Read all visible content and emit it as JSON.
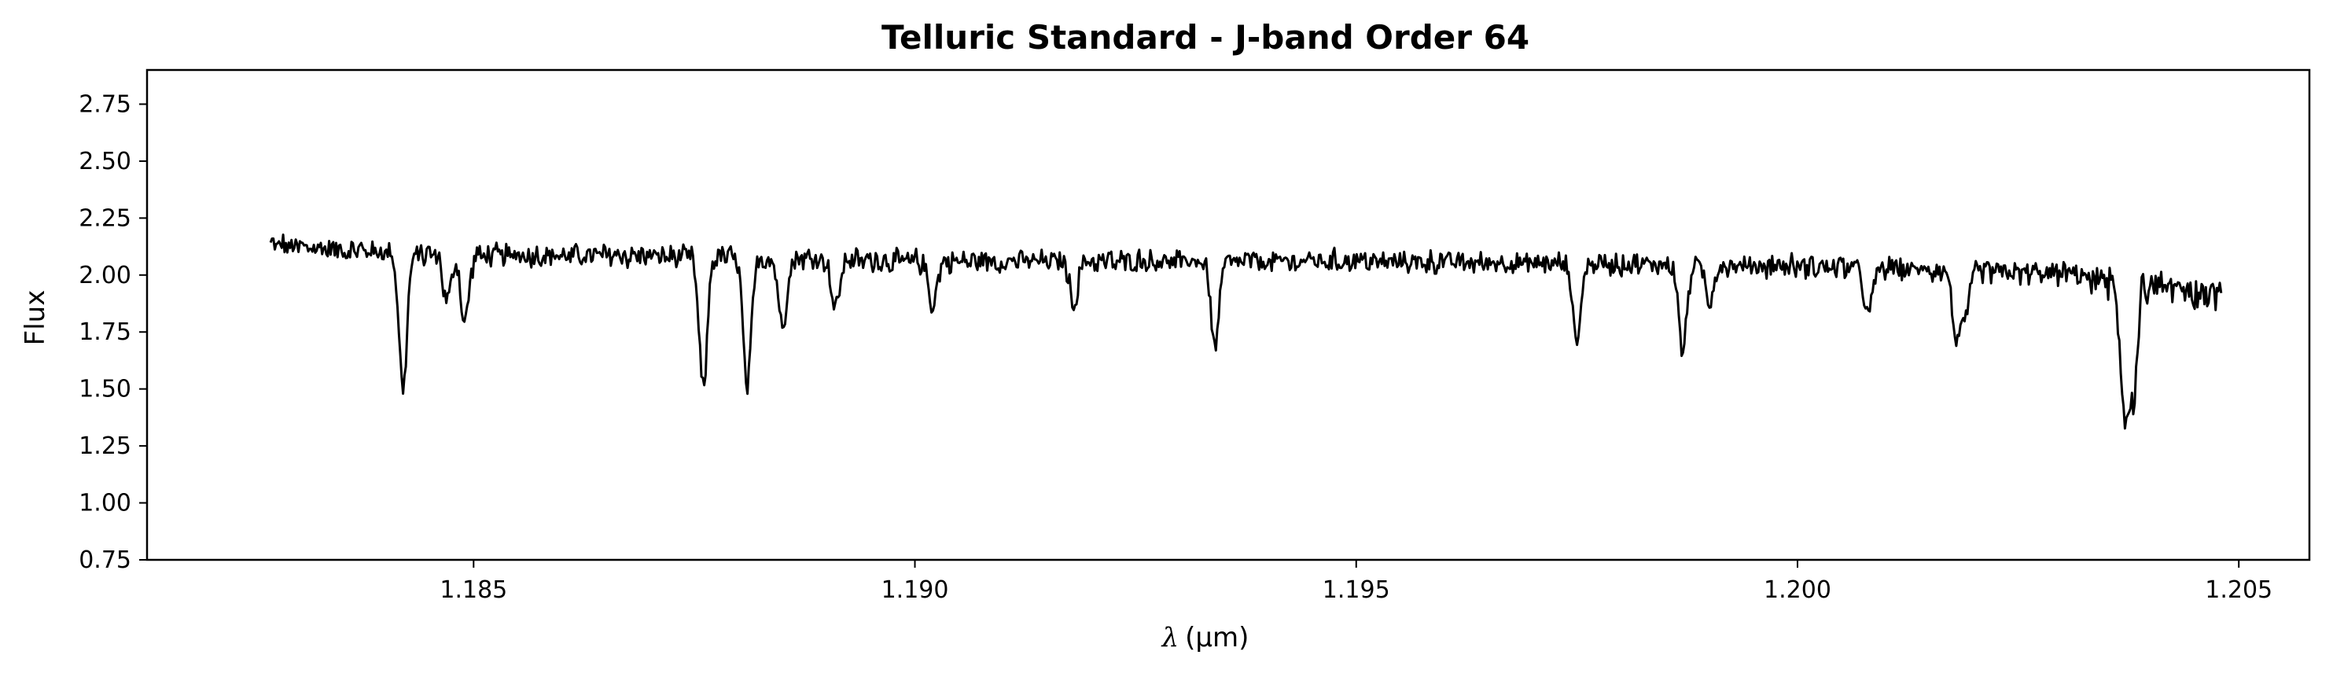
{
  "chart_data": {
    "type": "line",
    "title": "Telluric Standard - J-band Order 64",
    "xlabel_symbol": "λ",
    "xlabel_unit": "(μm)",
    "ylabel": "Flux",
    "xlim": [
      1.1813,
      1.2058
    ],
    "ylim": [
      0.75,
      2.9
    ],
    "xticks": [
      1.185,
      1.19,
      1.195,
      1.2,
      1.205
    ],
    "xtick_labels": [
      "1.185",
      "1.190",
      "1.195",
      "1.200",
      "1.205"
    ],
    "yticks": [
      0.75,
      1.0,
      1.25,
      1.5,
      1.75,
      2.0,
      2.25,
      2.5,
      2.75
    ],
    "ytick_labels": [
      "0.75",
      "1.00",
      "1.25",
      "1.50",
      "1.75",
      "2.00",
      "2.25",
      "2.50",
      "2.75"
    ],
    "grid": false,
    "line_color": "#000000",
    "series": [
      {
        "x_start": 1.1827,
        "x_end": 1.2048,
        "continuum": [
          [
            1.1827,
            2.13
          ],
          [
            1.1845,
            2.09
          ],
          [
            1.1875,
            2.08
          ],
          [
            1.19,
            2.06
          ],
          [
            1.195,
            2.06
          ],
          [
            1.2,
            2.04
          ],
          [
            1.2035,
            2.0
          ],
          [
            1.2048,
            1.95
          ]
        ],
        "absorption_lines": [
          [
            1.1842,
            1.5
          ],
          [
            1.1847,
            1.88
          ],
          [
            1.1849,
            1.79
          ],
          [
            1.1876,
            1.5
          ],
          [
            1.1881,
            1.5
          ],
          [
            1.1885,
            1.77
          ],
          [
            1.1891,
            1.85
          ],
          [
            1.1902,
            1.86
          ],
          [
            1.1918,
            1.88
          ],
          [
            1.1934,
            1.68
          ],
          [
            1.1975,
            1.71
          ],
          [
            1.1987,
            1.66
          ],
          [
            1.199,
            1.88
          ],
          [
            1.2008,
            1.82
          ],
          [
            1.2018,
            1.73
          ],
          [
            1.2019,
            1.82
          ],
          [
            1.2037,
            1.48
          ],
          [
            1.2038,
            1.47
          ]
        ]
      }
    ]
  }
}
